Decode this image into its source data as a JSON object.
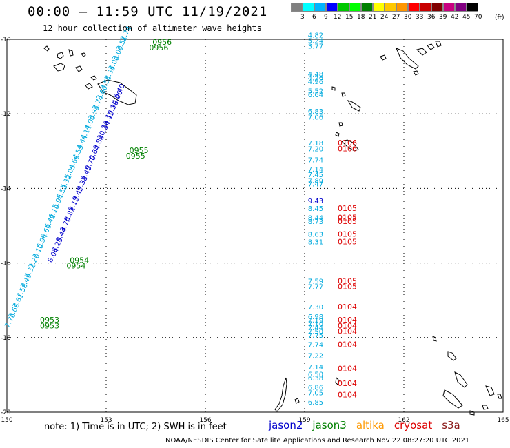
{
  "title": "00:00 – 11:59 UTC 11/19/2021",
  "subtitle": "12 hour collection of altimeter wave heights",
  "legend": {
    "labels": [
      "3",
      "6",
      "9",
      "12",
      "15",
      "18",
      "21",
      "24",
      "27",
      "30",
      "33",
      "36",
      "39",
      "42",
      "45",
      "70"
    ],
    "unit": "(ft)",
    "colors": [
      "#808080",
      "#00ffff",
      "#00b4ff",
      "#0000ff",
      "#00c800",
      "#00ff00",
      "#008000",
      "#ffff00",
      "#ffc800",
      "#ff9600",
      "#ff0000",
      "#c80000",
      "#800000",
      "#c80080",
      "#800080",
      "#000000"
    ]
  },
  "axes": {
    "lon_ticks": [
      "150",
      "153",
      "156",
      "159",
      "162",
      "165"
    ],
    "lat_ticks": [
      "-10",
      "-12",
      "-14",
      "-16",
      "-18",
      "-20"
    ],
    "lon_range": [
      150,
      165
    ],
    "lat_range": [
      -20,
      -10
    ]
  },
  "colors": {
    "jason2": "#0000cc",
    "jason3": "#008000",
    "altika": "#ff9900",
    "cryosat": "#dd0000",
    "s3a": "#8b1a1a",
    "swh_light": "#00aadd",
    "swh_dark": "#0000cc",
    "time_jason3": "#008000",
    "time_cryosat": "#dd0000"
  },
  "track_west": {
    "swh_light": [
      "2.74",
      "2.51",
      "3.00",
      "3.00",
      "3.35",
      "3.55",
      "3.60",
      "3.74",
      "3.95",
      "4.00",
      "4.11",
      "4.44",
      "4.59",
      "4.66",
      "5.05",
      "5.32",
      "5.53",
      "5.94",
      "6.10",
      "6.42",
      "6.69",
      "6.94",
      "7.10",
      "7.20",
      "7.32",
      "7.49",
      "7.58",
      "7.61",
      "7.66",
      "7.76"
    ],
    "swh_dark": [
      "9.40",
      "10.00",
      "10.28",
      "10.12",
      "10.34",
      "9.88",
      "9.64",
      "9.70",
      "9.45",
      "9.38",
      "9.42",
      "9.12",
      "8.81",
      "8.70",
      "8.44",
      "8.25",
      "8.04"
    ],
    "times": [
      {
        "text": "0956",
        "lat": -10.15,
        "lon": 154.4
      },
      {
        "text": "0956",
        "lat": -10.3,
        "lon": 154.3
      },
      {
        "text": "0955",
        "lat": -13.05,
        "lon": 153.7
      },
      {
        "text": "0955",
        "lat": -13.2,
        "lon": 153.6
      },
      {
        "text": "0954",
        "lat": -16.0,
        "lon": 151.9
      },
      {
        "text": "0954",
        "lat": -16.15,
        "lon": 151.8
      },
      {
        "text": "0953",
        "lat": -17.6,
        "lon": 151.0
      },
      {
        "text": "0953",
        "lat": -17.75,
        "lon": 151.0
      }
    ]
  },
  "track_east": {
    "swh": [
      {
        "v": "4.82",
        "lat": -9.95,
        "dark": false
      },
      {
        "v": "5.24",
        "lat": -10.1,
        "dark": false
      },
      {
        "v": "3.77",
        "lat": -10.25,
        "dark": false
      },
      {
        "v": "4.48",
        "lat": -11.0,
        "dark": false
      },
      {
        "v": "4.26",
        "lat": -11.1,
        "dark": false
      },
      {
        "v": "4.96",
        "lat": -11.2,
        "dark": false
      },
      {
        "v": "5.52",
        "lat": -11.45,
        "dark": false
      },
      {
        "v": "6.64",
        "lat": -11.55,
        "dark": false
      },
      {
        "v": "6.83",
        "lat": -12.0,
        "dark": false
      },
      {
        "v": "7.06",
        "lat": -12.15,
        "dark": false
      },
      {
        "v": "7.18",
        "lat": -12.85,
        "dark": false
      },
      {
        "v": "7.20",
        "lat": -13.0,
        "dark": false
      },
      {
        "v": "7.74",
        "lat": -13.3,
        "dark": false
      },
      {
        "v": "7.14",
        "lat": -13.55,
        "dark": false
      },
      {
        "v": "7.45",
        "lat": -13.7,
        "dark": false
      },
      {
        "v": "7.89",
        "lat": -13.85,
        "dark": false
      },
      {
        "v": "7.47",
        "lat": -13.95,
        "dark": false
      },
      {
        "v": "9.43",
        "lat": -14.4,
        "dark": true
      },
      {
        "v": "8.45",
        "lat": -14.6,
        "dark": false
      },
      {
        "v": "8.44",
        "lat": -14.85,
        "dark": false
      },
      {
        "v": "8.73",
        "lat": -14.95,
        "dark": false
      },
      {
        "v": "8.63",
        "lat": -15.3,
        "dark": false
      },
      {
        "v": "8.31",
        "lat": -15.5,
        "dark": false
      },
      {
        "v": "7.59",
        "lat": -16.55,
        "dark": false
      },
      {
        "v": "7.77",
        "lat": -16.7,
        "dark": false
      },
      {
        "v": "7.30",
        "lat": -17.25,
        "dark": false
      },
      {
        "v": "6.98",
        "lat": -17.5,
        "dark": false
      },
      {
        "v": "7.19",
        "lat": -17.6,
        "dark": false
      },
      {
        "v": "7.10",
        "lat": -17.7,
        "dark": false
      },
      {
        "v": "7.44",
        "lat": -17.8,
        "dark": false
      },
      {
        "v": "7.50",
        "lat": -17.9,
        "dark": false
      },
      {
        "v": "7.75",
        "lat": -18.0,
        "dark": false
      },
      {
        "v": "7.74",
        "lat": -18.25,
        "dark": false
      },
      {
        "v": "7.22",
        "lat": -18.55,
        "dark": false
      },
      {
        "v": "7.14",
        "lat": -18.85,
        "dark": false
      },
      {
        "v": "6.50",
        "lat": -19.05,
        "dark": false
      },
      {
        "v": "6.38",
        "lat": -19.15,
        "dark": false
      },
      {
        "v": "6.86",
        "lat": -19.4,
        "dark": false
      },
      {
        "v": "7.05",
        "lat": -19.55,
        "dark": false
      },
      {
        "v": "6.85",
        "lat": -19.8,
        "dark": false
      }
    ],
    "times": [
      {
        "text": "0106",
        "lat": -12.85
      },
      {
        "text": "0106",
        "lat": -13.0
      },
      {
        "text": "0105",
        "lat": -14.6
      },
      {
        "text": "0105",
        "lat": -14.85
      },
      {
        "text": "0105",
        "lat": -14.95
      },
      {
        "text": "0105",
        "lat": -15.3
      },
      {
        "text": "0105",
        "lat": -15.5
      },
      {
        "text": "0105",
        "lat": -16.55
      },
      {
        "text": "0105",
        "lat": -16.7
      },
      {
        "text": "0104",
        "lat": -17.25
      },
      {
        "text": "0104",
        "lat": -17.6
      },
      {
        "text": "0104",
        "lat": -17.75
      },
      {
        "text": "0104",
        "lat": -17.9
      },
      {
        "text": "0104",
        "lat": -18.25
      },
      {
        "text": "0104",
        "lat": -18.9
      },
      {
        "text": "0104",
        "lat": -19.3
      },
      {
        "text": "0104",
        "lat": -19.6
      }
    ]
  },
  "footer": {
    "note": "note: 1) Time is in UTC; 2) SWH is in feet",
    "satellites": [
      {
        "name": "jason2",
        "color": "#0000cc"
      },
      {
        "name": "jason3",
        "color": "#008000"
      },
      {
        "name": "altika",
        "color": "#ff9900"
      },
      {
        "name": "cryosat",
        "color": "#dd0000"
      },
      {
        "name": "s3a",
        "color": "#8b1a1a"
      }
    ],
    "credit": "NOAA/NESDIS Center for Satellite Applications and Research    Nov 22 08:27:20 UTC 2021"
  }
}
